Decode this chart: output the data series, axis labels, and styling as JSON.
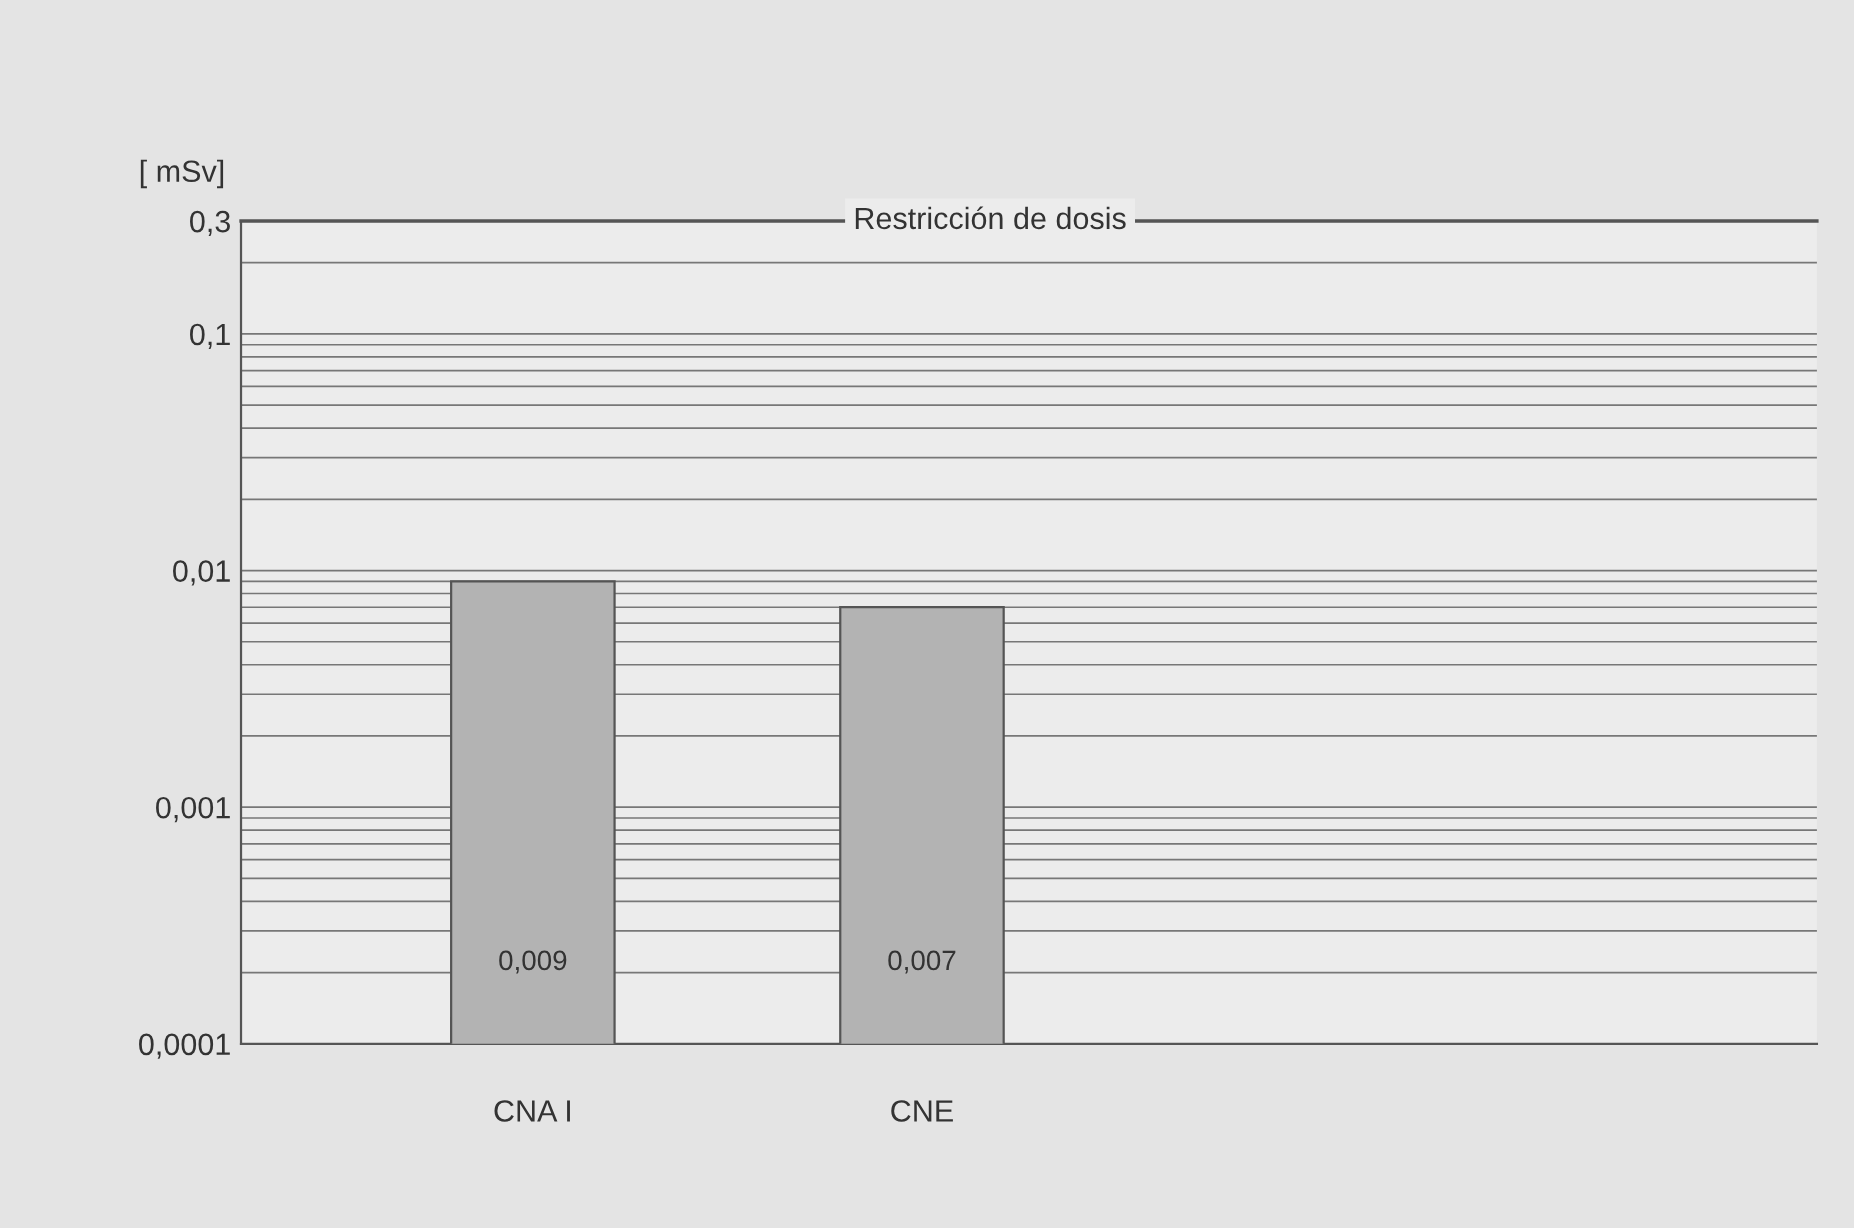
{
  "chart_data": {
    "type": "bar",
    "ylabel": "[ mSv]",
    "categories": [
      "CNA I",
      "CNE"
    ],
    "series": [
      {
        "color": "#b3b3b3",
        "values": [
          0.009,
          0.007
        ]
      }
    ],
    "value_labels": [
      "0,009",
      "0,007"
    ],
    "log": "y",
    "ylim": [
      0.0001,
      0.3
    ],
    "yticks": [
      {
        "value": 0.0001,
        "label": "0,0001"
      },
      {
        "value": 0.001,
        "label": "0,001"
      },
      {
        "value": 0.01,
        "label": "0,01"
      },
      {
        "value": 0.1,
        "label": "0,1"
      },
      {
        "value": 0.3,
        "label": "0,3"
      }
    ],
    "grid": "y",
    "ref_lines": [
      {
        "axis": "y",
        "value": 0.3,
        "label": "Restricción de dosis",
        "color": "#555555"
      }
    ]
  }
}
